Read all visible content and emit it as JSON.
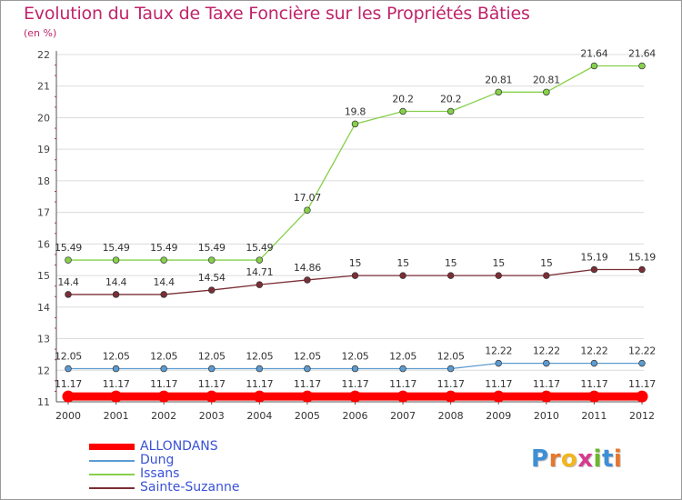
{
  "title": "Evolution du Taux de Taxe Foncière sur les Propriétés Bâties",
  "unit_label": "(en %)",
  "logo": {
    "letters": [
      "P",
      "r",
      "o",
      "x",
      "i",
      "t",
      "i"
    ],
    "colors": [
      "#3d8fd6",
      "#e8762c",
      "#f2b51c",
      "#d63a8f",
      "#6bb82a",
      "#3d8fd6",
      "#e8762c"
    ]
  },
  "chart_data": {
    "type": "line",
    "title": "Evolution du Taux de Taxe Foncière sur les Propriétés Bâties",
    "ylabel": "(en %)",
    "xlabel": "",
    "x": [
      "2000",
      "2001",
      "2002",
      "2003",
      "2004",
      "2005",
      "2006",
      "2007",
      "2008",
      "2009",
      "2010",
      "2011",
      "2012"
    ],
    "ylim": [
      11,
      22
    ],
    "yticks": [
      "11",
      "12",
      "13",
      "14",
      "15",
      "16",
      "17",
      "18",
      "19",
      "20",
      "21",
      "22"
    ],
    "grid": true,
    "legend_position": "bottom-left",
    "series": [
      {
        "name": "ALLONDANS",
        "color": "#ff0000",
        "values": [
          11.17,
          11.17,
          11.17,
          11.17,
          11.17,
          11.17,
          11.17,
          11.17,
          11.17,
          11.17,
          11.17,
          11.17,
          11.17
        ],
        "labels": [
          "11.17",
          "11.17",
          "11.17",
          "11.17",
          "11.17",
          "11.17",
          "11.17",
          "11.17",
          "11.17",
          "11.17",
          "11.17",
          "11.17",
          "11.17"
        ]
      },
      {
        "name": "Dung",
        "color": "#5b9bd1",
        "values": [
          12.05,
          12.05,
          12.05,
          12.05,
          12.05,
          12.05,
          12.05,
          12.05,
          12.05,
          12.22,
          12.22,
          12.22,
          12.22
        ],
        "labels": [
          "12.05",
          "12.05",
          "12.05",
          "12.05",
          "12.05",
          "12.05",
          "12.05",
          "12.05",
          "12.05",
          "12.22",
          "12.22",
          "12.22",
          "12.22"
        ]
      },
      {
        "name": "Issans",
        "color": "#86d04a",
        "values": [
          15.49,
          15.49,
          15.49,
          15.49,
          15.49,
          17.07,
          19.8,
          20.2,
          20.2,
          20.81,
          20.81,
          21.64,
          21.64
        ],
        "labels": [
          "15.49",
          "15.49",
          "15.49",
          "15.49",
          "15.49",
          "17.07",
          "19.8",
          "20.2",
          "20.2",
          "20.81",
          "20.81",
          "21.64",
          "21.64"
        ]
      },
      {
        "name": "Sainte-Suzanne",
        "color": "#7a2e36",
        "values": [
          14.4,
          14.4,
          14.4,
          14.54,
          14.71,
          14.86,
          15,
          15,
          15,
          15,
          15,
          15.19,
          15.19
        ],
        "labels": [
          "14.4",
          "14.4",
          "14.4",
          "14.54",
          "14.71",
          "14.86",
          "15",
          "15",
          "15",
          "15",
          "15",
          "15.19",
          "15.19"
        ]
      }
    ]
  }
}
